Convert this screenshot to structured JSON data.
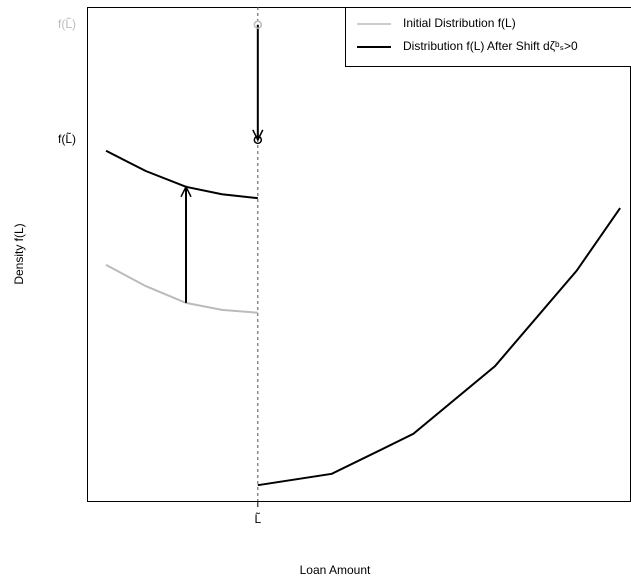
{
  "chart_data": {
    "type": "line",
    "x_label": "Loan Amount",
    "y_label": "Density f(L)",
    "x": [
      3.5,
      10.8,
      18.2,
      24.8,
      31.4,
      31.4,
      31.4,
      45,
      60,
      75,
      90,
      98
    ],
    "series": [
      {
        "name": "Initial Distribution f(L)",
        "color": "#bbbbbb",
        "values": [
          47.8,
          43.5,
          40.1,
          38.7,
          38.1,
          null,
          null,
          null,
          null,
          null,
          null,
          null
        ]
      },
      {
        "name": "Distribution f(L) After Shift dζᵇₛ>0",
        "color": "#000000",
        "values": [
          70.9,
          66.8,
          63.6,
          62.1,
          61.3,
          null,
          3.2,
          5.5,
          13.6,
          27.3,
          46.6,
          59.3
        ]
      }
    ],
    "xlim": [
      0,
      100
    ],
    "ylim": [
      0,
      100
    ],
    "xticks": [
      {
        "value": 31.4,
        "label": "L̃"
      }
    ],
    "yticks": [
      {
        "value": 96.4,
        "label": "f(L̃)"
      },
      {
        "value": 73.1,
        "label": "f(L̃)"
      }
    ],
    "ytick_colors": [
      "#bbbbbb",
      "#000000"
    ],
    "vline": 31.4,
    "points": [
      {
        "x": 31.4,
        "y": 96.4,
        "color": "#bbbbbb"
      },
      {
        "x": 31.4,
        "y": 73.1,
        "color": "#000000"
      }
    ],
    "arrows": [
      {
        "x": 18.2,
        "from": 40.1,
        "to": 63.6
      },
      {
        "x": 31.4,
        "from": 96.4,
        "to": 73.1
      }
    ],
    "legend": "top-right",
    "grid": false
  }
}
